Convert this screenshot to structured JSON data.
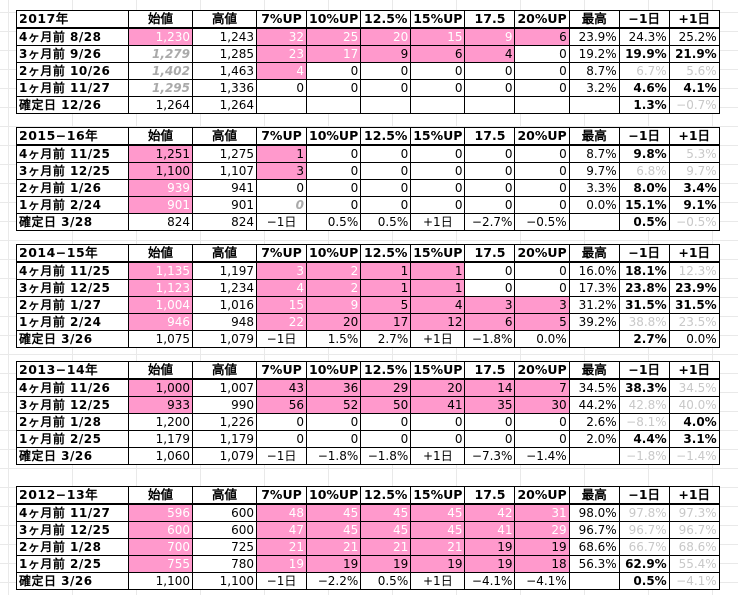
{
  "colors": {
    "pink": "#ff99cc",
    "white_text": "#ffffff",
    "gray_text": "#c8c8c8"
  },
  "blocks": [
    {
      "header": [
        "2017年",
        "始値",
        "高値",
        "7%UP",
        "10%UP",
        "12.5%",
        "15%UP",
        "17.5",
        "20%UP",
        "最高",
        "−1日",
        "+1日"
      ],
      "rows": [
        {
          "cells": [
            "4ヶ月前  8/28",
            "1,230",
            "1,243",
            "32",
            "25",
            "20",
            "15",
            "9",
            "6",
            "23.9%",
            "24.3%",
            "25.2%"
          ],
          "styles": [
            "",
            "pk-w",
            "",
            "pk-w",
            "pk-w",
            "pk-w",
            "pk-w",
            "pk-w",
            "pk",
            "",
            "",
            ""
          ]
        },
        {
          "cells": [
            "3ヶ月前  9/26",
            "1,279",
            "1,285",
            "23",
            "17",
            "9",
            "6",
            "4",
            "0",
            "19.2%",
            "19.9%",
            "21.9%"
          ],
          "styles": [
            "",
            "gi",
            "",
            "pk-w",
            "pk-w",
            "pk",
            "pk",
            "pk",
            "",
            "",
            "b",
            "b"
          ]
        },
        {
          "cells": [
            "2ヶ月前  10/26",
            "1,402",
            "1,463",
            "4",
            "0",
            "0",
            "0",
            "0",
            "0",
            "8.7%",
            "6.7%",
            "5.6%"
          ],
          "styles": [
            "",
            "gi",
            "",
            "pk-w",
            "",
            "",
            "",
            "",
            "",
            "",
            "g",
            "g"
          ]
        },
        {
          "cells": [
            "1ヶ月前  11/27",
            "1,295",
            "1,336",
            "0",
            "0",
            "0",
            "0",
            "0",
            "0",
            "3.2%",
            "4.6%",
            "4.1%"
          ],
          "styles": [
            "",
            "gi",
            "",
            "",
            "",
            "",
            "",
            "",
            "",
            "",
            "b",
            "b"
          ]
        },
        {
          "cells": [
            "確定日  12/26",
            "1,264",
            "1,264",
            "",
            "",
            "",
            "",
            "",
            "",
            "",
            "1.3%",
            "−0.7%"
          ],
          "styles": [
            "",
            "",
            "",
            "",
            "",
            "",
            "",
            "",
            "",
            "",
            "b",
            "g"
          ]
        }
      ]
    },
    {
      "header": [
        "2015−16年",
        "始値",
        "高値",
        "7%UP",
        "10%UP",
        "12.5%",
        "15%UP",
        "17.5",
        "20%UP",
        "最高",
        "−1日",
        "+1日"
      ],
      "rows": [
        {
          "cells": [
            "4ヶ月前  11/25",
            "1,251",
            "1,275",
            "1",
            "0",
            "0",
            "0",
            "0",
            "0",
            "8.7%",
            "9.8%",
            "5.3%"
          ],
          "styles": [
            "",
            "pk",
            "",
            "pk",
            "",
            "",
            "",
            "",
            "",
            "",
            "b",
            "g"
          ]
        },
        {
          "cells": [
            "3ヶ月前  12/25",
            "1,100",
            "1,107",
            "3",
            "0",
            "0",
            "0",
            "0",
            "0",
            "9.7%",
            "6.8%",
            "9.7%"
          ],
          "styles": [
            "",
            "pk",
            "",
            "pk",
            "",
            "",
            "",
            "",
            "",
            "",
            "g",
            "g"
          ]
        },
        {
          "cells": [
            "2ヶ月前  1/26",
            "939",
            "941",
            "0",
            "0",
            "0",
            "0",
            "0",
            "0",
            "3.3%",
            "8.0%",
            "3.4%"
          ],
          "styles": [
            "",
            "pk-w",
            "",
            "",
            "",
            "",
            "",
            "",
            "",
            "",
            "b",
            "b"
          ]
        },
        {
          "cells": [
            "1ヶ月前  2/24",
            "901",
            "901",
            "0",
            "0",
            "0",
            "0",
            "0",
            "0",
            "0.0%",
            "15.1%",
            "9.1%"
          ],
          "styles": [
            "",
            "pk-w",
            "",
            "gi",
            "",
            "",
            "",
            "",
            "",
            "",
            "b",
            "b"
          ]
        },
        {
          "cells": [
            "確定日  3/28",
            "824",
            "824",
            "−1日",
            "0.5%",
            "0.5%",
            "+1日",
            "−2.7%",
            "−0.5%",
            "",
            "0.5%",
            "−0.5%"
          ],
          "styles": [
            "",
            "",
            "",
            "c",
            "",
            "",
            "c",
            "",
            "",
            "",
            "b",
            "g"
          ]
        }
      ]
    },
    {
      "header": [
        "2014−15年",
        "始値",
        "高値",
        "7%UP",
        "10%UP",
        "12.5%",
        "15%UP",
        "17.5",
        "20%UP",
        "最高",
        "−1日",
        "+1日"
      ],
      "rows": [
        {
          "cells": [
            "4ヶ月前  11/25",
            "1,135",
            "1,197",
            "3",
            "2",
            "1",
            "1",
            "0",
            "0",
            "16.0%",
            "18.1%",
            "12.3%"
          ],
          "styles": [
            "",
            "pk-w",
            "",
            "pk-w",
            "pk-w",
            "pk",
            "pk",
            "",
            "",
            "",
            "b",
            "g"
          ]
        },
        {
          "cells": [
            "3ヶ月前  12/25",
            "1,123",
            "1,234",
            "4",
            "2",
            "1",
            "1",
            "0",
            "0",
            "17.3%",
            "23.8%",
            "23.9%"
          ],
          "styles": [
            "",
            "pk-w",
            "",
            "pk-w",
            "pk-w",
            "pk",
            "pk",
            "",
            "",
            "",
            "b",
            "b"
          ]
        },
        {
          "cells": [
            "2ヶ月前  1/27",
            "1,004",
            "1,016",
            "15",
            "9",
            "5",
            "4",
            "3",
            "3",
            "31.2%",
            "31.5%",
            "31.5%"
          ],
          "styles": [
            "",
            "pk-w",
            "",
            "pk-w",
            "pk-w",
            "pk",
            "pk",
            "pk",
            "pk",
            "",
            "b",
            "b"
          ]
        },
        {
          "cells": [
            "1ヶ月前  2/24",
            "946",
            "948",
            "22",
            "20",
            "17",
            "12",
            "6",
            "5",
            "39.2%",
            "38.8%",
            "23.5%"
          ],
          "styles": [
            "",
            "pk-w",
            "",
            "pk-w",
            "pk",
            "pk",
            "pk",
            "pk",
            "pk",
            "",
            "g",
            "g"
          ]
        },
        {
          "cells": [
            "確定日  3/26",
            "1,075",
            "1,079",
            "−1日",
            "1.5%",
            "2.7%",
            "+1日",
            "−1.8%",
            "0.0%",
            "",
            "2.7%",
            "0.0%"
          ],
          "styles": [
            "",
            "",
            "",
            "c",
            "",
            "",
            "c",
            "",
            "",
            "",
            "b",
            ""
          ]
        }
      ]
    },
    {
      "header": [
        "2013−14年",
        "始値",
        "高値",
        "7%UP",
        "10%UP",
        "12.5%",
        "15%UP",
        "17.5",
        "20%UP",
        "最高",
        "−1日",
        "+1日"
      ],
      "rows": [
        {
          "cells": [
            "4ヶ月前  11/26",
            "1,000",
            "1,007",
            "43",
            "36",
            "29",
            "20",
            "14",
            "7",
            "34.5%",
            "38.3%",
            "34.5%"
          ],
          "styles": [
            "",
            "pk",
            "",
            "pk",
            "pk",
            "pk",
            "pk",
            "pk",
            "pk",
            "",
            "b",
            "g"
          ]
        },
        {
          "cells": [
            "3ヶ月前  12/25",
            "933",
            "990",
            "56",
            "52",
            "50",
            "41",
            "35",
            "30",
            "44.2%",
            "42.8%",
            "40.0%"
          ],
          "styles": [
            "",
            "pk",
            "",
            "pk",
            "pk",
            "pk",
            "pk",
            "pk",
            "pk",
            "",
            "g",
            "g"
          ]
        },
        {
          "cells": [
            "2ヶ月前  1/28",
            "1,200",
            "1,226",
            "0",
            "0",
            "0",
            "0",
            "0",
            "0",
            "2.6%",
            "−8.1%",
            "4.0%"
          ],
          "styles": [
            "",
            "",
            "",
            "",
            "",
            "",
            "",
            "",
            "",
            "",
            "g",
            "b"
          ]
        },
        {
          "cells": [
            "1ヶ月前  2/25",
            "1,179",
            "1,179",
            "0",
            "0",
            "0",
            "0",
            "0",
            "0",
            "2.0%",
            "4.4%",
            "3.1%"
          ],
          "styles": [
            "",
            "",
            "",
            "",
            "",
            "",
            "",
            "",
            "",
            "",
            "b",
            "b"
          ]
        },
        {
          "cells": [
            "確定日  3/26",
            "1,060",
            "1,079",
            "−1日",
            "−1.8%",
            "−1.8%",
            "+1日",
            "−7.3%",
            "−1.4%",
            "",
            "−1.8%",
            "−1.4%"
          ],
          "styles": [
            "",
            "",
            "",
            "c",
            "",
            "",
            "c",
            "",
            "",
            "",
            "g",
            "g"
          ]
        }
      ]
    },
    {
      "header": [
        "2012−13年",
        "始値",
        "高値",
        "7%UP",
        "10%UP",
        "12.5%",
        "15%UP",
        "17.5",
        "20%UP",
        "最高",
        "−1日",
        "+1日"
      ],
      "rows": [
        {
          "cells": [
            "4ヶ月前  11/27",
            "596",
            "600",
            "48",
            "45",
            "45",
            "45",
            "42",
            "31",
            "98.0%",
            "97.8%",
            "97.3%"
          ],
          "styles": [
            "",
            "pk-w",
            "",
            "pk-w",
            "pk-w",
            "pk-w",
            "pk-w",
            "pk-w",
            "pk-w",
            "",
            "g",
            "g"
          ]
        },
        {
          "cells": [
            "3ヶ月前  12/25",
            "600",
            "600",
            "47",
            "45",
            "45",
            "45",
            "41",
            "29",
            "96.7%",
            "96.7%",
            "96.7%"
          ],
          "styles": [
            "",
            "pk-w",
            "",
            "pk-w",
            "pk-w",
            "pk-w",
            "pk-w",
            "pk-w",
            "pk-w",
            "",
            "g",
            "g"
          ]
        },
        {
          "cells": [
            "2ヶ月前  1/28",
            "700",
            "725",
            "21",
            "21",
            "21",
            "21",
            "19",
            "19",
            "68.6%",
            "66.7%",
            "68.6%"
          ],
          "styles": [
            "",
            "pk-w",
            "",
            "pk-w",
            "pk-w",
            "pk-w",
            "pk-w",
            "pk",
            "pk",
            "",
            "g",
            "g"
          ]
        },
        {
          "cells": [
            "1ヶ月前  2/25",
            "755",
            "780",
            "19",
            "19",
            "19",
            "19",
            "19",
            "18",
            "56.3%",
            "62.9%",
            "55.4%"
          ],
          "styles": [
            "",
            "pk-w",
            "",
            "pk-w",
            "pk",
            "pk",
            "pk",
            "pk",
            "pk",
            "",
            "b",
            "g"
          ]
        },
        {
          "cells": [
            "確定日  3/26",
            "1,100",
            "1,100",
            "−1日",
            "−2.2%",
            "0.5%",
            "+1日",
            "−4.1%",
            "−4.1%",
            "",
            "0.5%",
            "−4.1%"
          ],
          "styles": [
            "",
            "",
            "",
            "c",
            "",
            "",
            "c",
            "",
            "",
            "",
            "b",
            "g"
          ]
        }
      ]
    }
  ]
}
